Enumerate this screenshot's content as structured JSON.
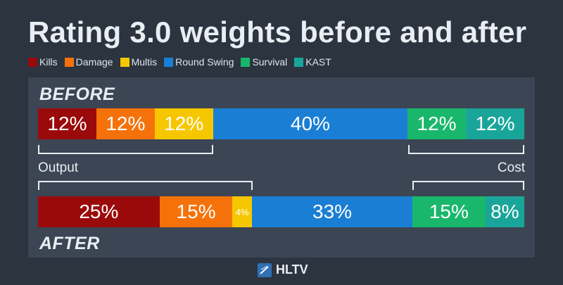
{
  "title": "Rating 3.0 weights before and after",
  "chart_data": {
    "type": "bar",
    "stacked": true,
    "orientation": "horizontal",
    "categories": [
      "Kills",
      "Damage",
      "Multis",
      "Round Swing",
      "Survival",
      "KAST"
    ],
    "colors": [
      "#9b0a0a",
      "#f5720b",
      "#f6c700",
      "#1a7fd4",
      "#19b76b",
      "#1aa59a"
    ],
    "series": [
      {
        "name": "BEFORE",
        "values": [
          12,
          12,
          12,
          40,
          12,
          12
        ],
        "labels": [
          "12%",
          "12%",
          "12%",
          "40%",
          "12%",
          "12%"
        ]
      },
      {
        "name": "AFTER",
        "values": [
          25,
          15,
          4,
          33,
          15,
          8
        ],
        "labels": [
          "25%",
          "15%",
          "4%",
          "33%",
          "15%",
          "8%"
        ]
      }
    ],
    "groups": {
      "output": "Output",
      "cost": "Cost"
    }
  },
  "brand": {
    "name": "HLTV",
    "icon": "hltv-logo-icon"
  }
}
